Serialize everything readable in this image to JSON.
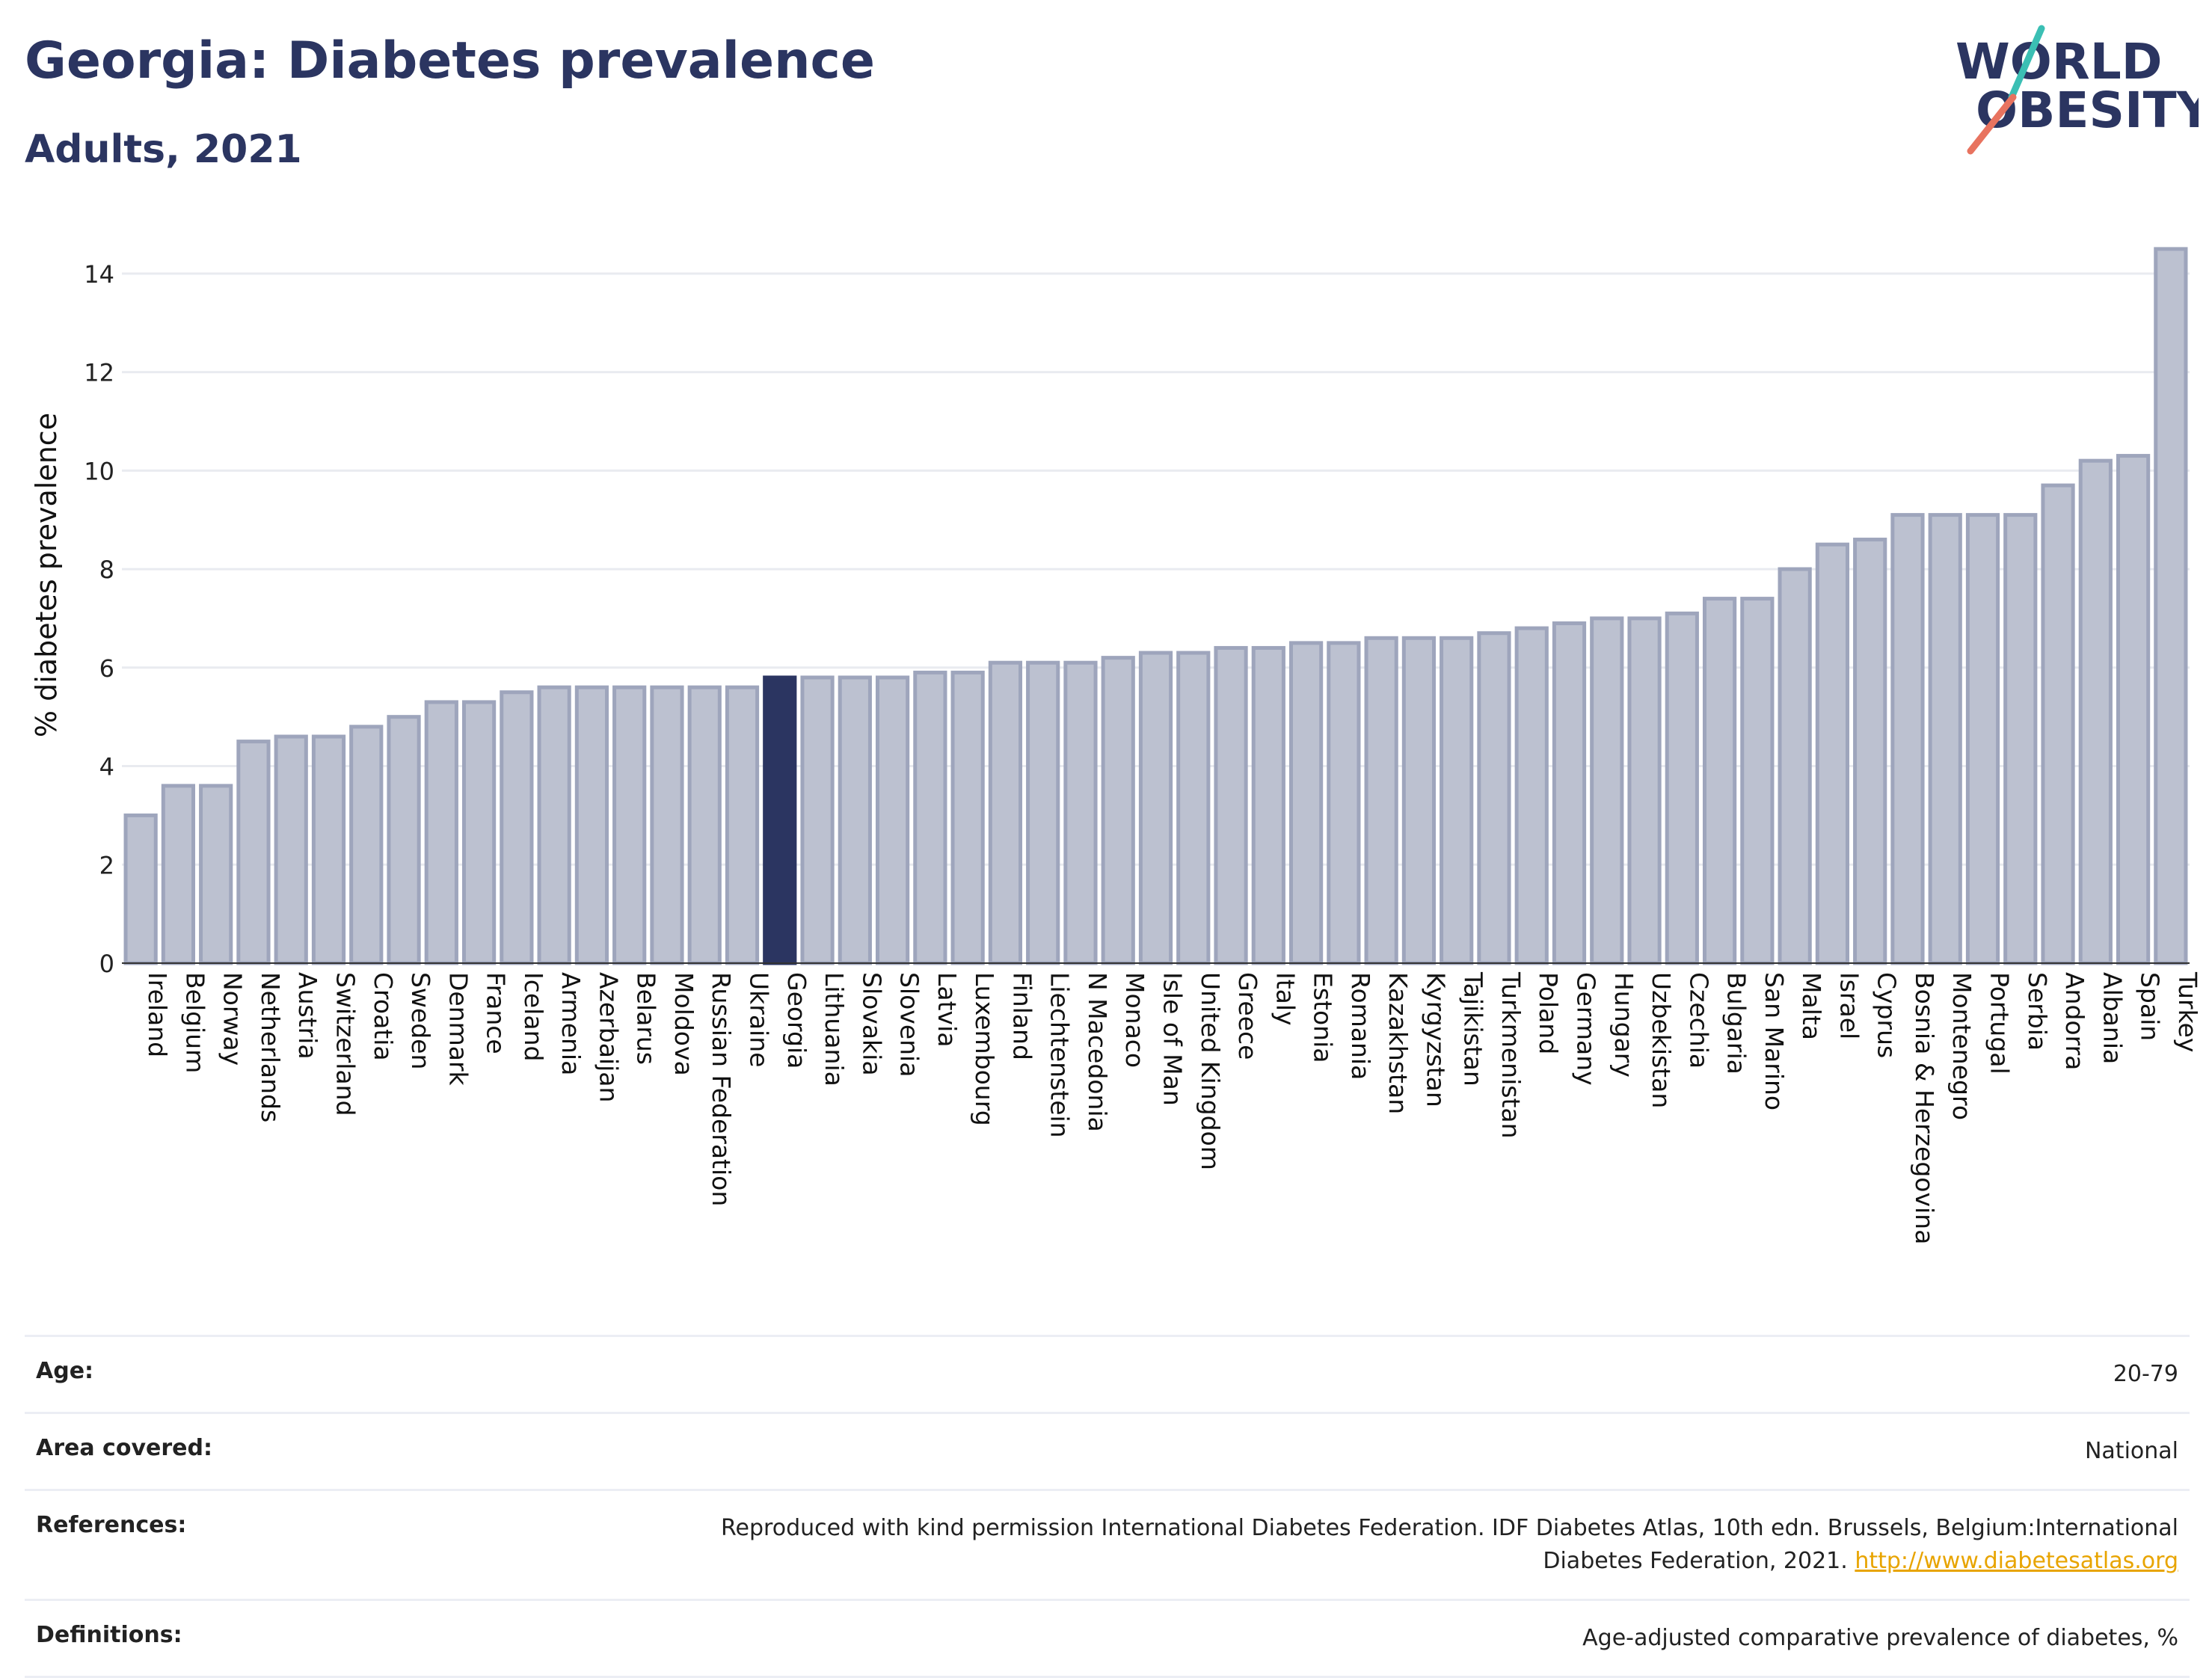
{
  "header": {
    "title": "Georgia: Diabetes prevalence",
    "subtitle": "Adults, 2021"
  },
  "logo": {
    "line1": "WORLD",
    "line2": "OBESITY",
    "icon": "world-obesity-logo"
  },
  "colors": {
    "bar": "#bcc1d0",
    "bar_border": "#9ea5bc",
    "highlight": "#2b3561",
    "title": "#2b3561",
    "grid": "#e9ebf0",
    "link": "#e8a400"
  },
  "chart_data": {
    "type": "bar",
    "ylabel": "% diabetes prevalence",
    "xlabel": "",
    "ylim": [
      0,
      15
    ],
    "yticks": [
      0,
      2,
      4,
      6,
      8,
      10,
      12,
      14
    ],
    "grid": true,
    "highlight": "Georgia",
    "categories": [
      "Ireland",
      "Belgium",
      "Norway",
      "Netherlands",
      "Austria",
      "Switzerland",
      "Croatia",
      "Sweden",
      "Denmark",
      "France",
      "Iceland",
      "Armenia",
      "Azerbaijan",
      "Belarus",
      "Moldova",
      "Russian Federation",
      "Ukraine",
      "Georgia",
      "Lithuania",
      "Slovakia",
      "Slovenia",
      "Latvia",
      "Luxembourg",
      "Finland",
      "Liechtenstein",
      "N Macedonia",
      "Monaco",
      "Isle of Man",
      "United Kingdom",
      "Greece",
      "Italy",
      "Estonia",
      "Romania",
      "Kazakhstan",
      "Kyrgyzstan",
      "Tajikistan",
      "Turkmenistan",
      "Poland",
      "Germany",
      "Hungary",
      "Uzbekistan",
      "Czechia",
      "Bulgaria",
      "San Marino",
      "Malta",
      "Israel",
      "Cyprus",
      "Bosnia & Herzegovina",
      "Montenegro",
      "Portugal",
      "Serbia",
      "Andorra",
      "Albania",
      "Spain",
      "Turkey"
    ],
    "values": [
      3.0,
      3.6,
      3.6,
      4.5,
      4.6,
      4.6,
      4.8,
      5.0,
      5.3,
      5.3,
      5.5,
      5.6,
      5.6,
      5.6,
      5.6,
      5.6,
      5.6,
      5.8,
      5.8,
      5.8,
      5.8,
      5.9,
      5.9,
      6.1,
      6.1,
      6.1,
      6.2,
      6.3,
      6.3,
      6.4,
      6.4,
      6.5,
      6.5,
      6.6,
      6.6,
      6.6,
      6.7,
      6.8,
      6.9,
      7.0,
      7.0,
      7.1,
      7.4,
      7.4,
      8.0,
      8.5,
      8.6,
      9.1,
      9.1,
      9.1,
      9.1,
      9.7,
      10.2,
      10.3,
      14.5
    ]
  },
  "info_table": [
    {
      "label": "Age:",
      "value": "20-79"
    },
    {
      "label": "Area covered:",
      "value": "National"
    },
    {
      "label": "References:",
      "value": "Reproduced with kind permission International Diabetes Federation.  IDF Diabetes Atlas, 10th edn. Brussels, Belgium:International Diabetes Federation, 2021.",
      "link": "http://www.diabetesatlas.org"
    },
    {
      "label": "Definitions:",
      "value": "Age-adjusted comparative prevalence of diabetes, %"
    }
  ]
}
